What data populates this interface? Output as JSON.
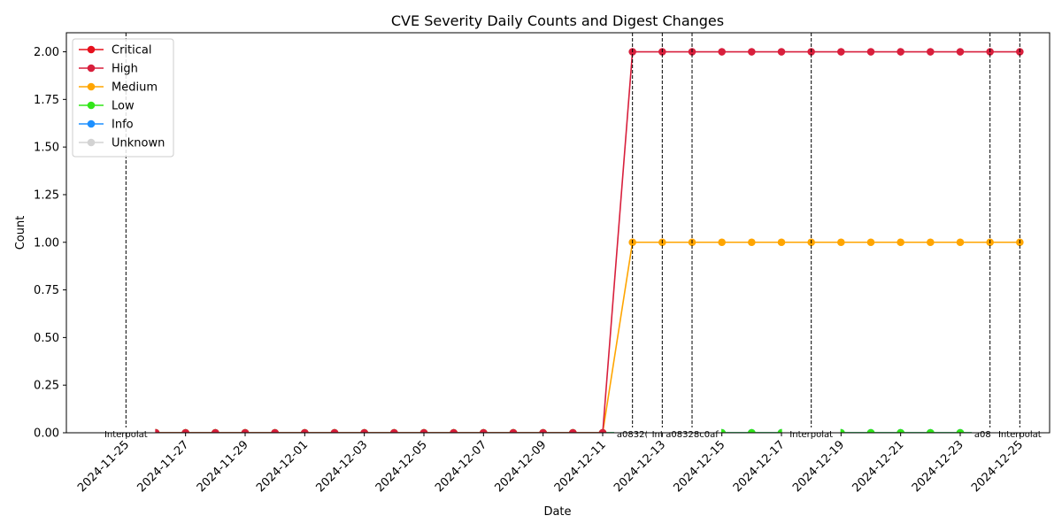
{
  "chart_data": {
    "type": "line",
    "title": "CVE Severity Daily Counts and Digest Changes",
    "xlabel": "Date",
    "ylabel": "Count",
    "x": [
      "2024-11-25",
      "2024-11-26",
      "2024-11-27",
      "2024-11-28",
      "2024-11-29",
      "2024-11-30",
      "2024-12-01",
      "2024-12-02",
      "2024-12-03",
      "2024-12-04",
      "2024-12-05",
      "2024-12-06",
      "2024-12-07",
      "2024-12-08",
      "2024-12-09",
      "2024-12-10",
      "2024-12-11",
      "2024-12-12",
      "2024-12-13",
      "2024-12-14",
      "2024-12-15",
      "2024-12-16",
      "2024-12-17",
      "2024-12-18",
      "2024-12-19",
      "2024-12-20",
      "2024-12-21",
      "2024-12-22",
      "2024-12-23",
      "2024-12-24",
      "2024-12-25"
    ],
    "xlim": [
      "2024-11-23",
      "2024-12-26"
    ],
    "x_tick_labels": [
      "2024-11-25",
      "2024-11-27",
      "2024-11-29",
      "2024-12-01",
      "2024-12-03",
      "2024-12-05",
      "2024-12-07",
      "2024-12-09",
      "2024-12-11",
      "2024-12-13",
      "2024-12-15",
      "2024-12-17",
      "2024-12-19",
      "2024-12-21",
      "2024-12-23",
      "2024-12-25"
    ],
    "ylim": [
      0,
      2.1
    ],
    "y_ticks": [
      "0.00",
      "0.25",
      "0.50",
      "0.75",
      "1.00",
      "1.25",
      "1.50",
      "1.75",
      "2.00"
    ],
    "grid": false,
    "legend_position": "top-left",
    "series": [
      {
        "name": "Critical",
        "color": "#e6101c",
        "values": [
          null,
          null,
          null,
          null,
          null,
          null,
          null,
          null,
          null,
          null,
          null,
          null,
          null,
          null,
          null,
          null,
          null,
          null,
          null,
          null,
          null,
          null,
          null,
          null,
          null,
          null,
          null,
          null,
          null,
          null,
          null
        ]
      },
      {
        "name": "High",
        "color": "#d81f3c",
        "values": [
          null,
          0,
          0,
          0,
          0,
          0,
          0,
          0,
          0,
          0,
          0,
          0,
          0,
          0,
          0,
          0,
          0,
          2,
          2,
          2,
          2,
          2,
          2,
          2,
          2,
          2,
          2,
          2,
          2,
          2,
          2
        ]
      },
      {
        "name": "Medium",
        "color": "#ffa500",
        "values": [
          null,
          0,
          0,
          0,
          0,
          0,
          0,
          0,
          0,
          0,
          0,
          0,
          0,
          0,
          0,
          0,
          0,
          1,
          1,
          1,
          1,
          1,
          1,
          1,
          1,
          1,
          1,
          1,
          1,
          1,
          1
        ]
      },
      {
        "name": "Low",
        "color": "#32e619",
        "values": [
          null,
          0,
          0,
          0,
          0,
          0,
          0,
          0,
          0,
          0,
          0,
          0,
          0,
          0,
          0,
          0,
          0,
          0,
          0,
          0,
          0,
          0,
          0,
          0,
          0,
          0,
          0,
          0,
          0,
          0,
          0
        ]
      },
      {
        "name": "Info",
        "color": "#1e90ff",
        "values": [
          null,
          0,
          0,
          0,
          0,
          0,
          0,
          0,
          0,
          0,
          0,
          0,
          0,
          0,
          0,
          0,
          0,
          0,
          0,
          0,
          0,
          0,
          0,
          0,
          0,
          0,
          0,
          0,
          0,
          0,
          0
        ]
      },
      {
        "name": "Unknown",
        "color": "#d3d3d3",
        "values": [
          null,
          0,
          0,
          0,
          0,
          0,
          0,
          0,
          0,
          0,
          0,
          0,
          0,
          0,
          0,
          0,
          0,
          0,
          0,
          0,
          0,
          0,
          0,
          0,
          0,
          0,
          0,
          0,
          0,
          0,
          0
        ]
      }
    ],
    "digest_changes": [
      {
        "date": "2024-11-25",
        "label": "Interpolat"
      },
      {
        "date": "2024-12-12",
        "label": "a0832("
      },
      {
        "date": "2024-12-13",
        "label": "Inter"
      },
      {
        "date": "2024-12-14",
        "label": "a08328c0af"
      },
      {
        "date": "2024-12-18",
        "label": "Interpolat"
      },
      {
        "date": "2024-12-24",
        "label": "a0832("
      },
      {
        "date": "2024-12-25",
        "label": "Interpolat"
      }
    ]
  }
}
